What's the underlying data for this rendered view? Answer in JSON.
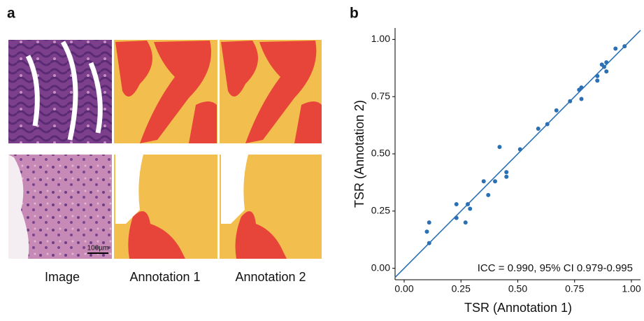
{
  "panel_a": {
    "label": "a",
    "captions": [
      "Image",
      "Annotation 1",
      "Annotation 2"
    ],
    "scale_bar": "100µm"
  },
  "chart_data": {
    "type": "scatter",
    "panel_label": "b",
    "x_label": "TSR (Annotation 1)",
    "y_label": "TSR (Annotation 2)",
    "annotation": "ICC = 0.990, 95% CI 0.979-0.995",
    "color": "#2b70b3",
    "reference_line": "identity",
    "x": [
      0.1,
      0.11,
      0.11,
      0.23,
      0.23,
      0.27,
      0.28,
      0.29,
      0.35,
      0.37,
      0.4,
      0.42,
      0.45,
      0.45,
      0.51,
      0.59,
      0.63,
      0.67,
      0.73,
      0.77,
      0.78,
      0.78,
      0.85,
      0.85,
      0.87,
      0.88,
      0.89,
      0.89,
      0.93,
      0.97
    ],
    "values": [
      0.16,
      0.2,
      0.11,
      0.22,
      0.28,
      0.2,
      0.28,
      0.26,
      0.38,
      0.32,
      0.38,
      0.53,
      0.42,
      0.4,
      0.52,
      0.61,
      0.63,
      0.69,
      0.73,
      0.78,
      0.79,
      0.74,
      0.82,
      0.84,
      0.89,
      0.88,
      0.86,
      0.9,
      0.96,
      0.97
    ],
    "xlim": [
      -0.04,
      1.04
    ],
    "ylim": [
      -0.05,
      1.05
    ],
    "xticks": [
      {
        "value": 0,
        "label": "0.00"
      },
      {
        "value": 0.25,
        "label": "0.25"
      },
      {
        "value": 0.5,
        "label": "0.50"
      },
      {
        "value": 0.75,
        "label": "0.75"
      },
      {
        "value": 1,
        "label": "1.00"
      }
    ],
    "yticks": [
      {
        "value": 0,
        "label": "0.00"
      },
      {
        "value": 0.25,
        "label": "0.25"
      },
      {
        "value": 0.5,
        "label": "0.50"
      },
      {
        "value": 0.75,
        "label": "0.75"
      },
      {
        "value": 1,
        "label": "1.00"
      }
    ]
  }
}
